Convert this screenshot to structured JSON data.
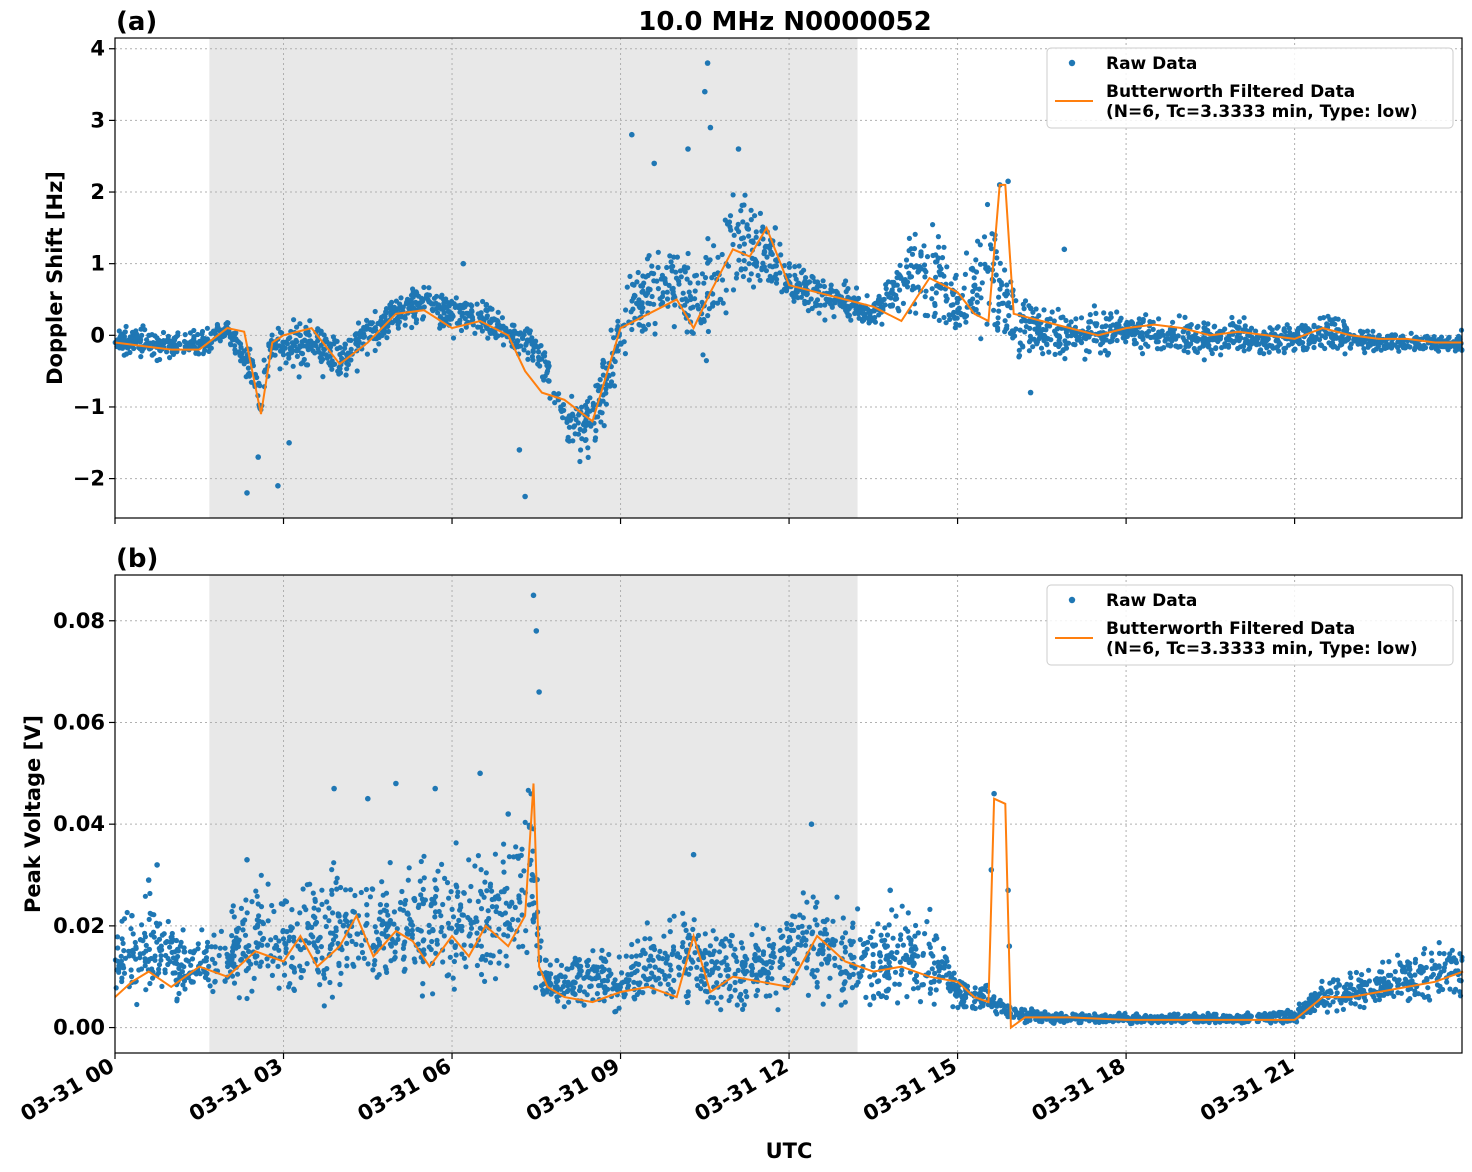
{
  "figure": {
    "title": "10.0 MHz N0000052"
  },
  "colors": {
    "raw": "#1f77b4",
    "filtered": "#ff7f0e",
    "shade": "#e8e8e8",
    "grid": "#b0b0b0"
  },
  "chart_data": [
    {
      "type": "scatter",
      "panel_label": "(a)",
      "title": "10.0 MHz N0000052",
      "xlabel": "",
      "ylabel": "Doppler Shift [Hz]",
      "xlim": [
        "03-31 00:00",
        "03-31 23:59"
      ],
      "ylim": [
        -2.55,
        4.15
      ],
      "x_ticks": [
        "03-31 00",
        "03-31 03",
        "03-31 06",
        "03-31 09",
        "03-31 12",
        "03-31 15",
        "03-31 18",
        "03-31 21"
      ],
      "y_ticks": [
        -2,
        -1,
        0,
        1,
        2,
        3,
        4
      ],
      "y_tick_labels": [
        "−2",
        "−1",
        "0",
        "1",
        "2",
        "3",
        "4"
      ],
      "grid": true,
      "shaded_region": {
        "x_start_hour": 1.68,
        "x_end_hour": 13.22
      },
      "legend": {
        "position": "top-right",
        "entries": [
          "Raw Data",
          "Butterworth Filtered Data",
          "(N=6, Tc=3.3333 min, Type: low)"
        ]
      },
      "series": [
        {
          "name": "Raw Data",
          "kind": "scatter-band",
          "x_hours": [
            0,
            0.5,
            1,
            1.5,
            2,
            2.3,
            2.6,
            2.8,
            3,
            3.5,
            4,
            4.5,
            5,
            5.5,
            6,
            6.5,
            7,
            7.5,
            8,
            8.5,
            9,
            9.5,
            10,
            10.5,
            11,
            11.5,
            12,
            12.5,
            13,
            13.5,
            14,
            14.5,
            15,
            15.5,
            15.8,
            16,
            16.5,
            17,
            17.5,
            18,
            18.5,
            19,
            19.5,
            20,
            20.5,
            21,
            21.5,
            22,
            22.5,
            23,
            23.5,
            24
          ],
          "y_low": [
            -0.35,
            -0.4,
            -0.4,
            -0.4,
            -0.1,
            -0.7,
            -1.3,
            -0.6,
            -0.7,
            -0.6,
            -0.8,
            -0.4,
            0.0,
            0.1,
            -0.1,
            -0.1,
            -0.3,
            -0.5,
            -1.7,
            -1.9,
            -0.6,
            -0.2,
            0.0,
            -0.6,
            0.3,
            0.5,
            0.3,
            0.2,
            0.1,
            0.0,
            0.1,
            0.0,
            -0.2,
            -0.4,
            -0.6,
            -0.5,
            -0.4,
            -0.4,
            -0.4,
            -0.3,
            -0.4,
            -0.4,
            -0.4,
            -0.3,
            -0.4,
            -0.3,
            -0.3,
            -0.3,
            -0.3,
            -0.3,
            -0.3,
            -0.3
          ],
          "y_high": [
            0.2,
            0.2,
            0.1,
            0.2,
            0.25,
            0.1,
            -0.3,
            0.3,
            0.3,
            0.3,
            0.1,
            0.5,
            0.6,
            0.8,
            0.7,
            0.6,
            0.3,
            0.2,
            -0.6,
            -0.6,
            0.7,
            1.5,
            1.3,
            1.5,
            2.4,
            2.0,
            1.2,
            1.0,
            0.8,
            0.6,
            1.3,
            1.9,
            1.0,
            2.2,
            1.6,
            1.1,
            0.5,
            0.4,
            0.5,
            0.4,
            0.4,
            0.3,
            0.3,
            0.3,
            0.2,
            0.2,
            0.4,
            0.2,
            0.1,
            0.1,
            0.1,
            0.1
          ],
          "outliers": [
            [
              2.35,
              -2.2
            ],
            [
              2.55,
              -1.7
            ],
            [
              2.9,
              -2.1
            ],
            [
              3.1,
              -1.5
            ],
            [
              6.2,
              1.0
            ],
            [
              7.2,
              -1.6
            ],
            [
              7.3,
              -2.25
            ],
            [
              9.2,
              2.8
            ],
            [
              9.6,
              2.4
            ],
            [
              10.2,
              2.6
            ],
            [
              10.5,
              3.4
            ],
            [
              10.55,
              3.8
            ],
            [
              10.6,
              2.9
            ],
            [
              11.1,
              2.6
            ],
            [
              15.75,
              2.1
            ],
            [
              15.9,
              2.15
            ],
            [
              16.3,
              -0.8
            ],
            [
              16.9,
              1.2
            ]
          ]
        },
        {
          "name": "Butterworth Filtered Data",
          "kind": "line",
          "x_hours": [
            0,
            0.5,
            1,
            1.5,
            2,
            2.3,
            2.6,
            2.8,
            3,
            3.5,
            4,
            4.5,
            5,
            5.5,
            6,
            6.5,
            7,
            7.3,
            7.6,
            8,
            8.5,
            9,
            9.5,
            10,
            10.3,
            10.6,
            11,
            11.3,
            11.6,
            12,
            12.5,
            13,
            13.5,
            14,
            14.5,
            15,
            15.3,
            15.55,
            15.75,
            15.85,
            16,
            16.5,
            17,
            17.5,
            18,
            18.5,
            19,
            19.5,
            20,
            20.5,
            21,
            21.5,
            22,
            22.5,
            23,
            23.5,
            24
          ],
          "y": [
            -0.1,
            -0.15,
            -0.2,
            -0.2,
            0.1,
            0.05,
            -1.1,
            -0.1,
            0.0,
            0.1,
            -0.4,
            -0.1,
            0.3,
            0.35,
            0.1,
            0.2,
            0.0,
            -0.5,
            -0.8,
            -0.9,
            -1.2,
            0.1,
            0.3,
            0.5,
            0.1,
            0.6,
            1.2,
            1.1,
            1.5,
            0.7,
            0.6,
            0.5,
            0.4,
            0.2,
            0.8,
            0.6,
            0.3,
            0.2,
            2.1,
            2.1,
            0.3,
            0.2,
            0.1,
            0.0,
            0.1,
            0.15,
            0.1,
            0.0,
            0.05,
            0.0,
            -0.05,
            0.1,
            0.0,
            -0.05,
            -0.05,
            -0.1,
            -0.1
          ]
        }
      ]
    },
    {
      "type": "scatter",
      "panel_label": "(b)",
      "xlabel": "UTC",
      "ylabel": "Peak Voltage [V]",
      "xlim": [
        "03-31 00:00",
        "03-31 23:59"
      ],
      "ylim": [
        -0.005,
        0.089
      ],
      "x_ticks": [
        "03-31 00",
        "03-31 03",
        "03-31 06",
        "03-31 09",
        "03-31 12",
        "03-31 15",
        "03-31 18",
        "03-31 21"
      ],
      "y_ticks": [
        0.0,
        0.02,
        0.04,
        0.06,
        0.08
      ],
      "y_tick_labels": [
        "0.00",
        "0.02",
        "0.04",
        "0.06",
        "0.08"
      ],
      "grid": true,
      "shaded_region": {
        "x_start_hour": 1.68,
        "x_end_hour": 13.22
      },
      "legend": {
        "position": "top-right",
        "entries": [
          "Raw Data",
          "Butterworth Filtered Data",
          "(N=6, Tc=3.3333 min, Type: low)"
        ]
      },
      "series": [
        {
          "name": "Raw Data",
          "kind": "scatter-band",
          "x_hours": [
            0,
            0.5,
            1,
            1.5,
            2,
            2.5,
            3,
            3.5,
            4,
            4.5,
            5,
            5.5,
            6,
            6.5,
            7,
            7.4,
            7.6,
            8,
            8.5,
            9,
            9.5,
            10,
            10.5,
            11,
            11.5,
            12,
            12.5,
            13,
            13.5,
            14,
            14.5,
            15,
            15.5,
            15.9,
            16.5,
            17,
            18,
            19,
            20,
            21,
            21.5,
            22,
            22.5,
            23,
            23.5,
            24
          ],
          "y_low": [
            0.002,
            0.002,
            0.003,
            0.003,
            0.003,
            0.002,
            0.003,
            0.002,
            0.003,
            0.002,
            0.003,
            0.003,
            0.002,
            0.003,
            0.003,
            0.003,
            0.002,
            0.002,
            0.002,
            0.002,
            0.002,
            0.002,
            0.002,
            0.002,
            0.002,
            0.002,
            0.002,
            0.002,
            0.002,
            0.002,
            0.002,
            0.002,
            0.002,
            0.0005,
            0.0005,
            0.0005,
            0.0005,
            0.0005,
            0.0005,
            0.0005,
            0.002,
            0.002,
            0.003,
            0.003,
            0.003,
            0.004
          ],
          "y_high": [
            0.022,
            0.03,
            0.024,
            0.02,
            0.024,
            0.034,
            0.03,
            0.035,
            0.036,
            0.038,
            0.035,
            0.04,
            0.038,
            0.04,
            0.04,
            0.06,
            0.016,
            0.015,
            0.018,
            0.016,
            0.022,
            0.028,
            0.02,
            0.022,
            0.022,
            0.03,
            0.03,
            0.028,
            0.025,
            0.026,
            0.026,
            0.012,
            0.01,
            0.005,
            0.004,
            0.003,
            0.003,
            0.003,
            0.003,
            0.004,
            0.01,
            0.012,
            0.014,
            0.016,
            0.018,
            0.02
          ],
          "outliers": [
            [
              0.3,
              0.022
            ],
            [
              0.6,
              0.029
            ],
            [
              0.75,
              0.032
            ],
            [
              2.35,
              0.033
            ],
            [
              3.9,
              0.047
            ],
            [
              4.5,
              0.045
            ],
            [
              5,
              0.048
            ],
            [
              5.7,
              0.047
            ],
            [
              6.5,
              0.05
            ],
            [
              7.0,
              0.042
            ],
            [
              7.45,
              0.085
            ],
            [
              7.5,
              0.078
            ],
            [
              7.55,
              0.066
            ],
            [
              10.3,
              0.034
            ],
            [
              12.4,
              0.04
            ],
            [
              13.8,
              0.027
            ],
            [
              15.6,
              0.031
            ],
            [
              15.65,
              0.046
            ],
            [
              15.9,
              0.027
            ],
            [
              15.92,
              0.016
            ]
          ]
        },
        {
          "name": "Butterworth Filtered Data",
          "kind": "line",
          "x_hours": [
            0,
            0.3,
            0.6,
            1,
            1.5,
            2,
            2.5,
            3,
            3.3,
            3.6,
            4,
            4.3,
            4.6,
            5,
            5.3,
            5.6,
            6,
            6.3,
            6.6,
            7,
            7.3,
            7.45,
            7.55,
            7.7,
            8,
            8.5,
            9,
            9.5,
            10,
            10.3,
            10.6,
            11,
            11.5,
            12,
            12.5,
            13,
            13.5,
            14,
            14.5,
            15,
            15.3,
            15.55,
            15.65,
            15.85,
            15.95,
            16.2,
            17,
            18,
            19,
            20,
            21,
            21.5,
            22,
            22.5,
            23,
            23.5,
            24
          ],
          "y": [
            0.006,
            0.009,
            0.011,
            0.008,
            0.012,
            0.01,
            0.015,
            0.013,
            0.018,
            0.012,
            0.016,
            0.022,
            0.014,
            0.019,
            0.017,
            0.012,
            0.018,
            0.014,
            0.02,
            0.016,
            0.022,
            0.048,
            0.012,
            0.008,
            0.006,
            0.005,
            0.007,
            0.008,
            0.006,
            0.018,
            0.007,
            0.01,
            0.009,
            0.008,
            0.018,
            0.013,
            0.011,
            0.012,
            0.01,
            0.009,
            0.006,
            0.005,
            0.045,
            0.044,
            0.0,
            0.002,
            0.002,
            0.0015,
            0.0015,
            0.0015,
            0.0015,
            0.006,
            0.006,
            0.007,
            0.008,
            0.009,
            0.011
          ]
        }
      ]
    }
  ]
}
